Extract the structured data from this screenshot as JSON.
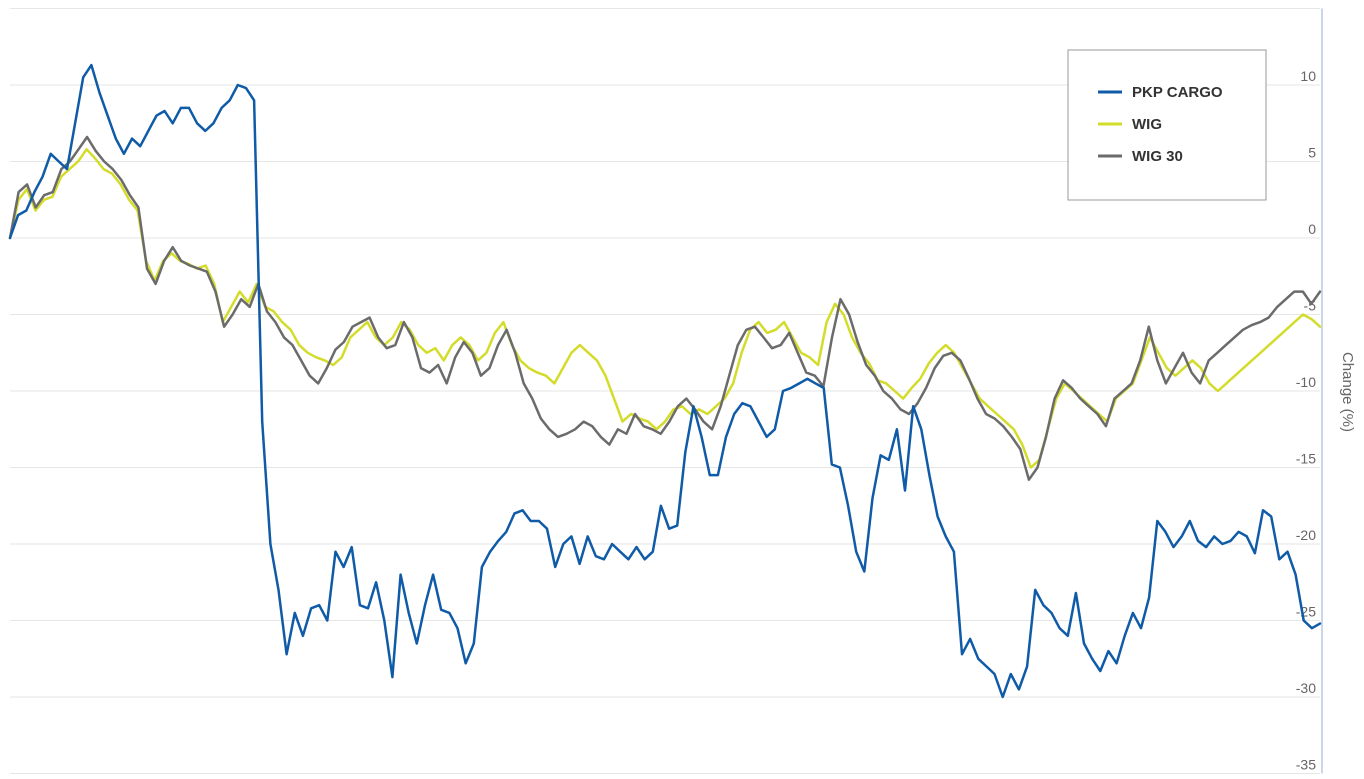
{
  "chart_data": {
    "type": "line",
    "title": "",
    "xlabel": "",
    "ylabel": "Change (%)",
    "ylim": [
      -35,
      15
    ],
    "yticks": [
      10,
      5,
      0,
      -5,
      -10,
      -15,
      -20,
      -25,
      -30,
      -35
    ],
    "grid": true,
    "legend_position": "top-right",
    "colors": {
      "PKP CARGO": "#0f5ba8",
      "WIG": "#d4dc2b",
      "WIG 30": "#6b6b6b"
    },
    "series": [
      {
        "name": "WIG",
        "values": [
          0,
          2.5,
          3.2,
          1.8,
          2.5,
          2.7,
          4,
          4.5,
          5,
          5.8,
          5.2,
          4.5,
          4.2,
          3.5,
          2.5,
          1.8,
          -1.5,
          -2.8,
          -1.5,
          -1,
          -1.5,
          -1.7,
          -2,
          -1.8,
          -3,
          -5.5,
          -4.5,
          -3.5,
          -4.2,
          -3,
          -4.5,
          -4.8,
          -5.5,
          -6,
          -7,
          -7.5,
          -7.8,
          -8,
          -8.3,
          -7.8,
          -6.5,
          -6,
          -5.5,
          -6.5,
          -7,
          -6.5,
          -5.5,
          -6,
          -7,
          -7.5,
          -7.2,
          -8,
          -7,
          -6.5,
          -7,
          -8,
          -7.5,
          -6.2,
          -5.5,
          -7,
          -8,
          -8.5,
          -8.8,
          -9,
          -9.5,
          -8.5,
          -7.5,
          -7,
          -7.5,
          -8,
          -9,
          -10.5,
          -12,
          -11.5,
          -11.8,
          -12,
          -12.5,
          -12,
          -11.2,
          -11,
          -11.5,
          -11.2,
          -11.5,
          -11,
          -10.5,
          -9.5,
          -7.5,
          -6,
          -5.5,
          -6.2,
          -6,
          -5.5,
          -6.5,
          -7.5,
          -7.8,
          -8.3,
          -5.5,
          -4.3,
          -5,
          -6.5,
          -7.5,
          -8.2,
          -9.3,
          -9.5,
          -10,
          -10.5,
          -9.8,
          -9.2,
          -8.2,
          -7.5,
          -7,
          -7.5,
          -8.5,
          -9.5,
          -10.5,
          -11,
          -11.5,
          -12,
          -12.5,
          -13.5,
          -15,
          -14.5,
          -12.5,
          -10.5,
          -9.5,
          -10,
          -10.5,
          -11,
          -11.5,
          -12,
          -10.5,
          -10,
          -9.5,
          -8,
          -6.5,
          -7.5,
          -8.5,
          -9,
          -8.5,
          -8,
          -8.5,
          -9.5,
          -10,
          -9.5,
          -9,
          -8.5,
          -8,
          -7.5,
          -7,
          -6.5,
          -6,
          -5.5,
          -5,
          -5.3,
          -5.8
        ]
      },
      {
        "name": "WIG 30",
        "values": [
          0,
          3,
          3.5,
          2,
          2.8,
          3,
          4.5,
          5,
          5.8,
          6.6,
          5.7,
          5,
          4.5,
          3.8,
          2.8,
          2,
          -2,
          -3,
          -1.5,
          -0.6,
          -1.5,
          -1.8,
          -2,
          -2.2,
          -3.5,
          -5.8,
          -5,
          -4,
          -4.5,
          -3,
          -4.8,
          -5.5,
          -6.5,
          -7,
          -8,
          -9,
          -9.5,
          -8.5,
          -7.3,
          -6.8,
          -5.8,
          -5.5,
          -5.2,
          -6.5,
          -7.2,
          -7,
          -5.5,
          -6.5,
          -8.5,
          -8.8,
          -8.3,
          -9.5,
          -7.8,
          -6.8,
          -7.5,
          -9,
          -8.5,
          -7,
          -6,
          -7.5,
          -9.5,
          -10.5,
          -11.8,
          -12.5,
          -13,
          -12.8,
          -12.5,
          -12,
          -12.3,
          -13,
          -13.5,
          -12.5,
          -12.8,
          -11.5,
          -12.3,
          -12.5,
          -12.8,
          -12,
          -11,
          -10.5,
          -11.2,
          -12,
          -12.5,
          -11,
          -9,
          -7,
          -6,
          -5.8,
          -6.5,
          -7.2,
          -7,
          -6.2,
          -7.5,
          -8.8,
          -9,
          -9.7,
          -6.5,
          -4,
          -5,
          -6.8,
          -8.3,
          -9,
          -10,
          -10.5,
          -11.2,
          -11.5,
          -10.8,
          -9.8,
          -8.5,
          -7.7,
          -7.5,
          -8,
          -9.2,
          -10.5,
          -11.5,
          -11.8,
          -12.3,
          -13,
          -13.8,
          -15.8,
          -15,
          -13,
          -10.5,
          -9.3,
          -9.8,
          -10.5,
          -11,
          -11.5,
          -12.3,
          -10.5,
          -10,
          -9.5,
          -8,
          -5.8,
          -8,
          -9.5,
          -8.5,
          -7.5,
          -8.8,
          -9.5,
          -8,
          -7.5,
          -7,
          -6.5,
          -6,
          -5.7,
          -5.5,
          -5.2,
          -4.5,
          -4,
          -3.5,
          -3.5,
          -4.3,
          -3.5
        ]
      },
      {
        "name": "PKP CARGO",
        "values": [
          0,
          1.5,
          1.8,
          3,
          4,
          5.5,
          5,
          4.5,
          7.5,
          10.5,
          11.3,
          9.5,
          8,
          6.5,
          5.5,
          6.5,
          6,
          7,
          8,
          8.3,
          7.5,
          8.5,
          8.5,
          7.5,
          7,
          7.5,
          8.5,
          9,
          10,
          9.8,
          9,
          -12,
          -20,
          -23,
          -27.2,
          -24.5,
          -26,
          -24.2,
          -24,
          -25,
          -20.5,
          -21.5,
          -20.2,
          -24,
          -24.2,
          -22.5,
          -25,
          -28.7,
          -22,
          -24.5,
          -26.5,
          -24,
          -22,
          -24.3,
          -24.5,
          -25.5,
          -27.8,
          -26.5,
          -21.5,
          -20.5,
          -19.8,
          -19.2,
          -18,
          -17.8,
          -18.5,
          -18.5,
          -19,
          -21.5,
          -20,
          -19.5,
          -21.3,
          -19.5,
          -20.8,
          -21,
          -20,
          -20.5,
          -21,
          -20.2,
          -21,
          -20.5,
          -17.5,
          -19,
          -18.8,
          -14,
          -11,
          -13,
          -15.5,
          -15.5,
          -13,
          -11.5,
          -10.8,
          -11,
          -12,
          -13,
          -12.5,
          -10,
          -9.8,
          -9.5,
          -9.2,
          -9.5,
          -9.8,
          -14.8,
          -15,
          -17.5,
          -20.5,
          -21.8,
          -17,
          -14.2,
          -14.5,
          -12.5,
          -16.5,
          -11,
          -12.5,
          -15.5,
          -18.2,
          -19.5,
          -20.5,
          -27.2,
          -26.2,
          -27.5,
          -28,
          -28.5,
          -30,
          -28.5,
          -29.5,
          -28,
          -23,
          -24,
          -24.5,
          -25.5,
          -26,
          -23.2,
          -26.5,
          -27.5,
          -28.3,
          -27,
          -27.8,
          -26,
          -24.5,
          -25.5,
          -23.5,
          -18.5,
          -19.2,
          -20.2,
          -19.5,
          -18.5,
          -19.8,
          -20.2,
          -19.5,
          -20,
          -19.8,
          -19.2,
          -19.5,
          -20.6,
          -17.8,
          -18.2,
          -21,
          -20.5,
          -22,
          -25,
          -25.5,
          -25.2
        ]
      }
    ]
  }
}
